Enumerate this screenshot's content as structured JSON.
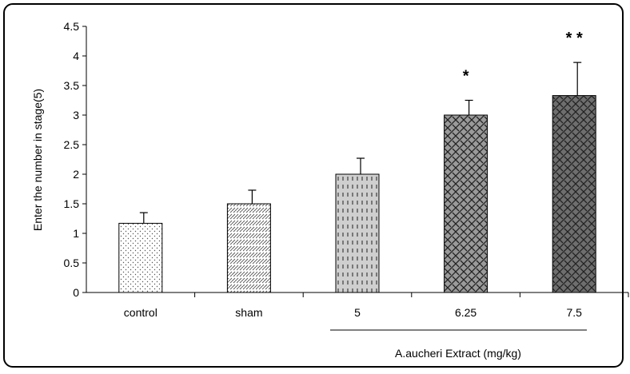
{
  "chart_data": {
    "type": "bar",
    "title": "",
    "ylabel": "Enter the number in stage(5)",
    "xlabel": "",
    "group_label": "A.aucheri Extract (mg/kg)",
    "ylim": [
      0,
      4.5
    ],
    "y_ticks": [
      "0",
      "0.5",
      "1",
      "1.5",
      "2",
      "2.5",
      "3",
      "3.5",
      "4",
      "4.5"
    ],
    "grid": false,
    "categories": [
      "control",
      "sham",
      "5",
      "6.25",
      "7.5"
    ],
    "values": [
      1.17,
      1.5,
      2.0,
      3.0,
      3.33
    ],
    "errors": [
      0.18,
      0.23,
      0.27,
      0.25,
      0.56
    ],
    "significance": [
      "",
      "",
      "",
      "*",
      "* *"
    ],
    "fills": [
      {
        "pattern": "dots",
        "bg": "#ffffff",
        "fg": "#555555"
      },
      {
        "pattern": "checker",
        "bg": "#ffffff",
        "fg": "#555555"
      },
      {
        "pattern": "dashes",
        "bg": "#cfcfcf",
        "fg": "#222222"
      },
      {
        "pattern": "weave",
        "bg": "#9a9a9a",
        "fg": "#222222"
      },
      {
        "pattern": "weave",
        "bg": "#6e6e6e",
        "fg": "#222222"
      }
    ]
  }
}
